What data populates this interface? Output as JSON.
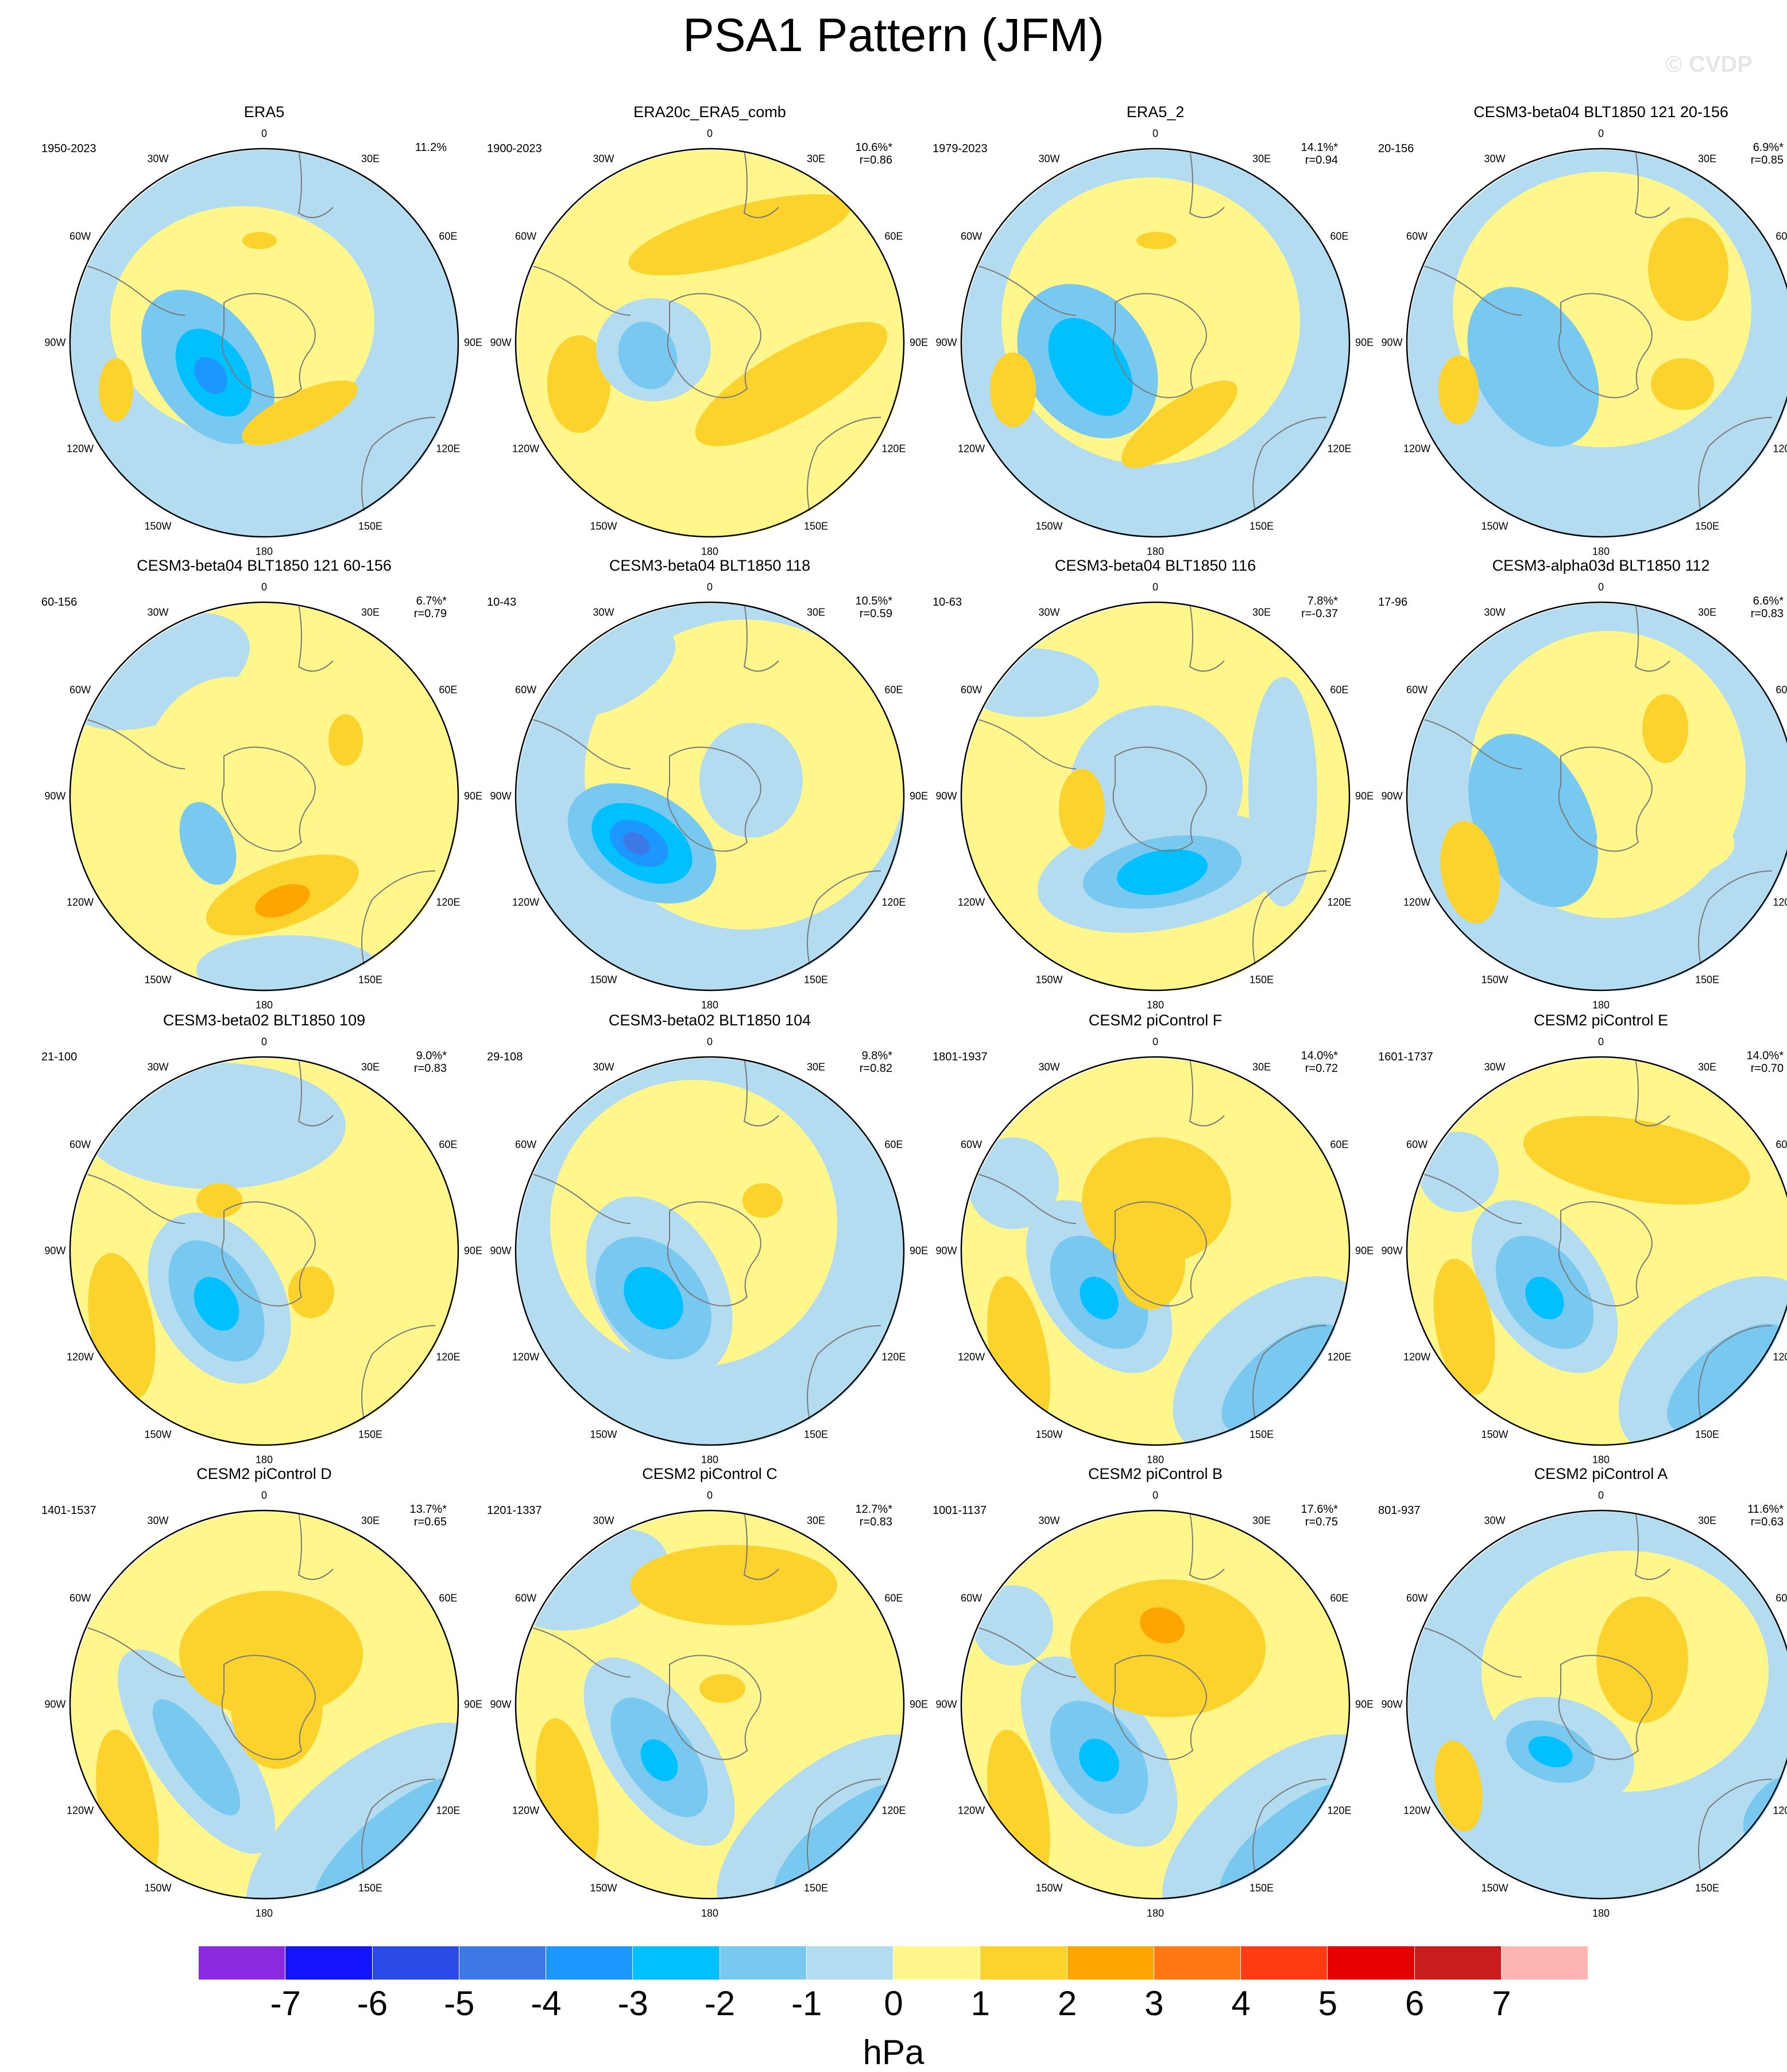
{
  "title": "PSA1 Pattern (JFM)",
  "watermark": "© CVDP",
  "colors": {
    "neg7": "#8a2be2",
    "neg6": "#1414ff",
    "neg5": "#2b4be8",
    "neg4": "#3c78e6",
    "neg3": "#1e96ff",
    "neg2": "#00c0ff",
    "neg1": "#78c8f0",
    "neg0": "#b4dcf0",
    "pos0": "#fff68c",
    "pos1": "#fcd22d",
    "pos2": "#ffa500",
    "pos3": "#ff7814",
    "pos4": "#ff3c14",
    "pos5": "#e60000",
    "pos6": "#c81e1e",
    "pos7": "#ffb4b4",
    "coast": "#7a7a7a"
  },
  "longitude_labels": [
    "0",
    "30E",
    "60E",
    "90E",
    "120E",
    "150E",
    "180",
    "150W",
    "120W",
    "90W",
    "60W",
    "30W"
  ],
  "chart_data": {
    "type": "heatmap",
    "description_type": "polar stereographic contour maps of sea level pressure regression",
    "units": "hPa",
    "colorbar": {
      "ticks": [
        "-7",
        "-6",
        "-5",
        "-4",
        "-3",
        "-2",
        "-1",
        "0",
        "1",
        "2",
        "3",
        "4",
        "5",
        "6",
        "7"
      ],
      "bins": [
        -8,
        -7,
        -6,
        -5,
        -4,
        -3,
        -2,
        -1,
        0,
        1,
        2,
        3,
        4,
        5,
        6,
        7,
        8
      ]
    },
    "panels": [
      {
        "name": "ERA5",
        "period": "1950-2023",
        "pct": "11.2%",
        "r": ""
      },
      {
        "name": "ERA20c_ERA5_comb",
        "period": "1900-2023",
        "pct": "10.6%*",
        "r": "r=0.86"
      },
      {
        "name": "ERA5_2",
        "period": "1979-2023",
        "pct": "14.1%*",
        "r": "r=0.94"
      },
      {
        "name": "CESM3-beta04 BLT1850 121 20-156",
        "period": "20-156",
        "pct": "6.9%*",
        "r": "r=0.85"
      },
      {
        "name": "CESM3-beta04 BLT1850 121 60-156",
        "period": "60-156",
        "pct": "6.7%*",
        "r": "r=0.79"
      },
      {
        "name": "CESM3-beta04 BLT1850 118",
        "period": "10-43",
        "pct": "10.5%*",
        "r": "r=0.59"
      },
      {
        "name": "CESM3-beta04 BLT1850 116",
        "period": "10-63",
        "pct": "7.8%*",
        "r": "r=-0.37"
      },
      {
        "name": "CESM3-alpha03d BLT1850 112",
        "period": "17-96",
        "pct": "6.6%*",
        "r": "r=0.83"
      },
      {
        "name": "CESM3-beta02 BLT1850 109",
        "period": "21-100",
        "pct": "9.0%*",
        "r": "r=0.83"
      },
      {
        "name": "CESM3-beta02 BLT1850 104",
        "period": "29-108",
        "pct": "9.8%*",
        "r": "r=0.82"
      },
      {
        "name": "CESM2 piControl F",
        "period": "1801-1937",
        "pct": "14.0%*",
        "r": "r=0.72"
      },
      {
        "name": "CESM2 piControl E",
        "period": "1601-1737",
        "pct": "14.0%*",
        "r": "r=0.70"
      },
      {
        "name": "CESM2 piControl D",
        "period": "1401-1537",
        "pct": "13.7%*",
        "r": "r=0.65"
      },
      {
        "name": "CESM2 piControl C",
        "period": "1201-1337",
        "pct": "12.7%*",
        "r": "r=0.83"
      },
      {
        "name": "CESM2 piControl B",
        "period": "1001-1137",
        "pct": "17.6%*",
        "r": "r=0.75"
      },
      {
        "name": "CESM2 piControl A",
        "period": "801-937",
        "pct": "11.6%*",
        "r": "r=0.63"
      }
    ]
  }
}
